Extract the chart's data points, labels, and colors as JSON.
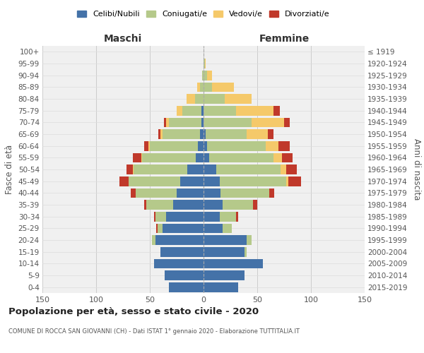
{
  "age_groups": [
    "0-4",
    "5-9",
    "10-14",
    "15-19",
    "20-24",
    "25-29",
    "30-34",
    "35-39",
    "40-44",
    "45-49",
    "50-54",
    "55-59",
    "60-64",
    "65-69",
    "70-74",
    "75-79",
    "80-84",
    "85-89",
    "90-94",
    "95-99",
    "100+"
  ],
  "birth_years": [
    "2015-2019",
    "2010-2014",
    "2005-2009",
    "2000-2004",
    "1995-1999",
    "1990-1994",
    "1985-1989",
    "1980-1984",
    "1975-1979",
    "1970-1974",
    "1965-1969",
    "1960-1964",
    "1955-1959",
    "1950-1954",
    "1945-1949",
    "1940-1944",
    "1935-1939",
    "1930-1934",
    "1925-1929",
    "1920-1924",
    "≤ 1919"
  ],
  "maschi": {
    "celibi": [
      32,
      36,
      46,
      40,
      45,
      38,
      35,
      28,
      25,
      22,
      15,
      7,
      5,
      3,
      2,
      2,
      0,
      0,
      0,
      0,
      0
    ],
    "coniugati": [
      0,
      0,
      0,
      0,
      3,
      5,
      10,
      25,
      38,
      48,
      50,
      50,
      45,
      35,
      30,
      18,
      8,
      3,
      1,
      0,
      0
    ],
    "vedovi": [
      0,
      0,
      0,
      0,
      0,
      0,
      0,
      0,
      0,
      0,
      1,
      1,
      1,
      2,
      3,
      5,
      8,
      3,
      0,
      0,
      0
    ],
    "divorziati": [
      0,
      0,
      0,
      0,
      0,
      1,
      1,
      2,
      5,
      8,
      6,
      8,
      4,
      2,
      2,
      0,
      0,
      0,
      0,
      0,
      0
    ]
  },
  "femmine": {
    "nubili": [
      32,
      38,
      55,
      38,
      40,
      18,
      15,
      18,
      16,
      15,
      12,
      5,
      3,
      2,
      0,
      0,
      0,
      0,
      0,
      0,
      0
    ],
    "coniugate": [
      0,
      0,
      0,
      2,
      5,
      8,
      15,
      28,
      45,
      62,
      60,
      60,
      55,
      38,
      45,
      30,
      20,
      8,
      3,
      1,
      0
    ],
    "vedove": [
      0,
      0,
      0,
      0,
      0,
      0,
      0,
      0,
      0,
      2,
      5,
      8,
      12,
      20,
      30,
      35,
      25,
      20,
      5,
      1,
      0
    ],
    "divorziate": [
      0,
      0,
      0,
      0,
      0,
      0,
      2,
      4,
      5,
      12,
      10,
      10,
      10,
      5,
      5,
      6,
      0,
      0,
      0,
      0,
      0
    ]
  },
  "colors": {
    "celibi": "#4472a8",
    "coniugati": "#b5c98a",
    "vedovi": "#f5c96a",
    "divorziati": "#c0392b"
  },
  "title": "Popolazione per età, sesso e stato civile - 2020",
  "subtitle": "COMUNE DI ROCCA SAN GIOVANNI (CH) - Dati ISTAT 1° gennaio 2020 - Elaborazione TUTTITALIA.IT",
  "xlabel_left": "Maschi",
  "xlabel_right": "Femmine",
  "ylabel_left": "Fasce di età",
  "ylabel_right": "Anni di nascita",
  "xlim": 150,
  "legend_labels": [
    "Celibi/Nubili",
    "Coniugati/e",
    "Vedovi/e",
    "Divorziati/e"
  ]
}
